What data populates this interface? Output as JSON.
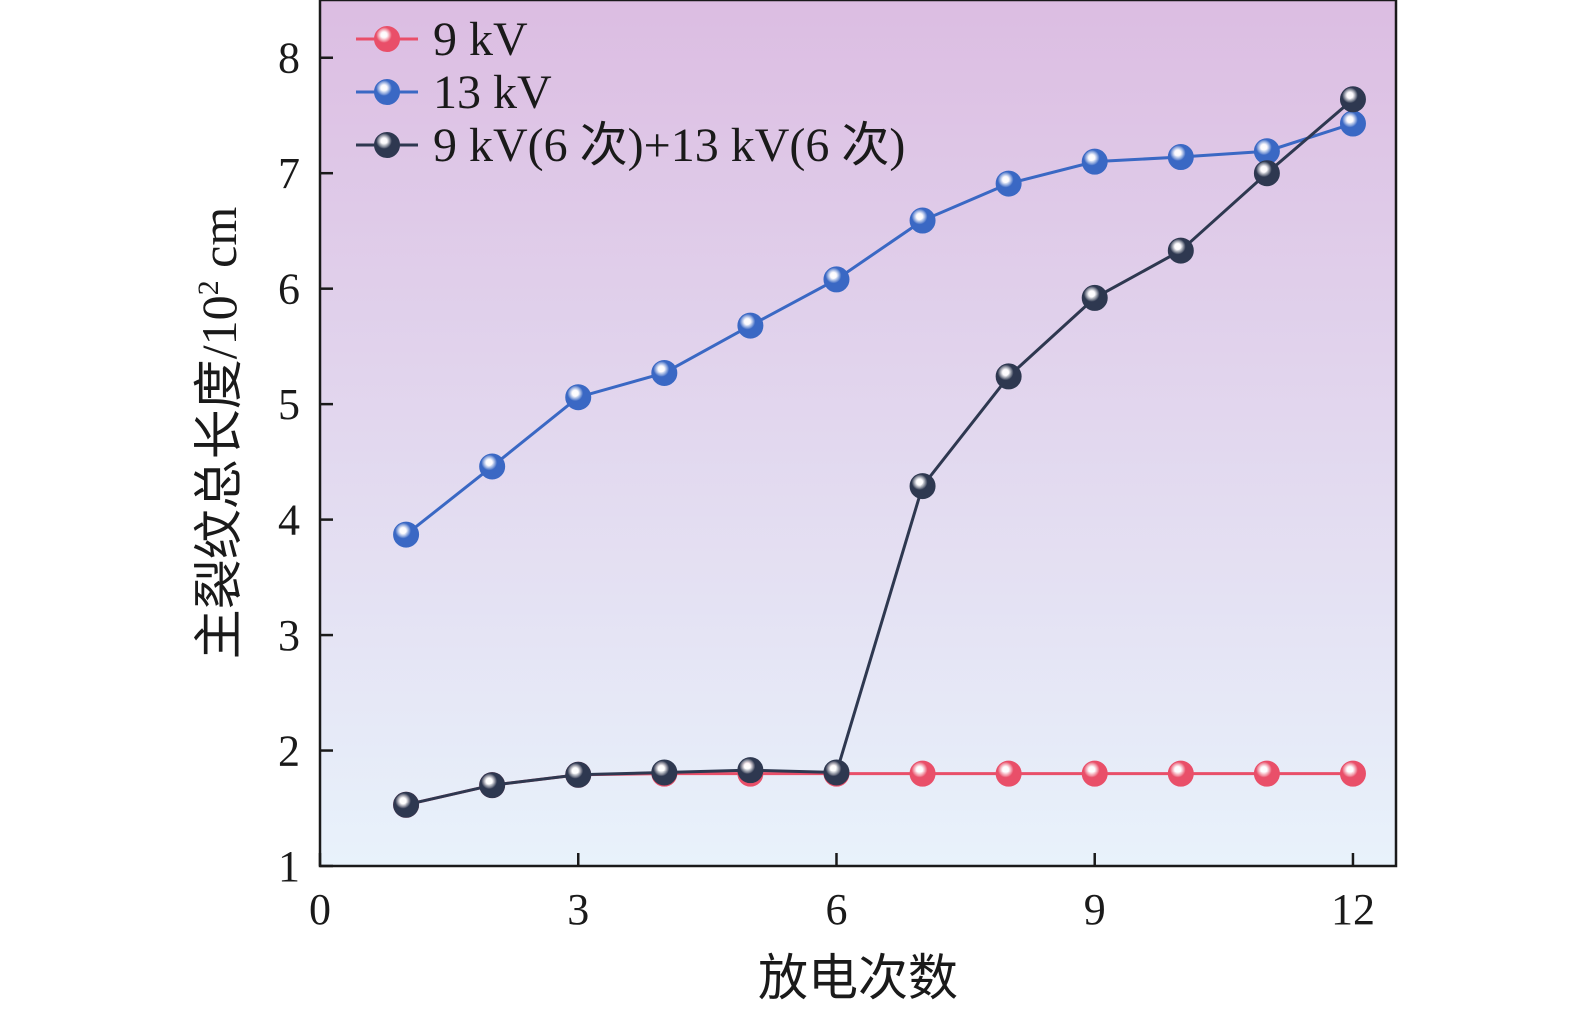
{
  "chart_data": {
    "type": "line",
    "title": "",
    "xlabel": "放电次数",
    "ylabel_main": "主裂纹总长度/10",
    "ylabel_sup": "2",
    "ylabel_unit": " cm",
    "xlim": [
      0,
      12.5
    ],
    "ylim": [
      1,
      8.5
    ],
    "xticks": [
      0,
      3,
      6,
      9,
      12
    ],
    "yticks": [
      1,
      2,
      3,
      4,
      5,
      6,
      7,
      8
    ],
    "grid": false,
    "legend_position": "top-left",
    "background_gradient": {
      "top": "#dcbde2",
      "bottom": "#e8f2fb"
    },
    "series": [
      {
        "name": "9 kV",
        "color": "#e94f69",
        "x": [
          1,
          2,
          3,
          4,
          5,
          6,
          7,
          8,
          9,
          10,
          11,
          12
        ],
        "y": [
          1.53,
          1.7,
          1.79,
          1.8,
          1.8,
          1.8,
          1.8,
          1.8,
          1.8,
          1.8,
          1.8,
          1.8
        ]
      },
      {
        "name": "13 kV",
        "color": "#3a68c4",
        "x": [
          1,
          2,
          3,
          4,
          5,
          6,
          7,
          8,
          9,
          10,
          11,
          12
        ],
        "y": [
          3.87,
          4.46,
          5.06,
          5.27,
          5.68,
          6.08,
          6.59,
          6.91,
          7.1,
          7.14,
          7.19,
          7.43
        ]
      },
      {
        "name": "9 kV(6 次)+13 kV(6 次)",
        "color": "#2e3850",
        "x": [
          1,
          2,
          3,
          4,
          5,
          6,
          7,
          8,
          9,
          10,
          11,
          12
        ],
        "y": [
          1.53,
          1.7,
          1.79,
          1.81,
          1.83,
          1.81,
          4.29,
          5.24,
          5.92,
          6.33,
          7.0,
          7.64
        ]
      }
    ]
  }
}
